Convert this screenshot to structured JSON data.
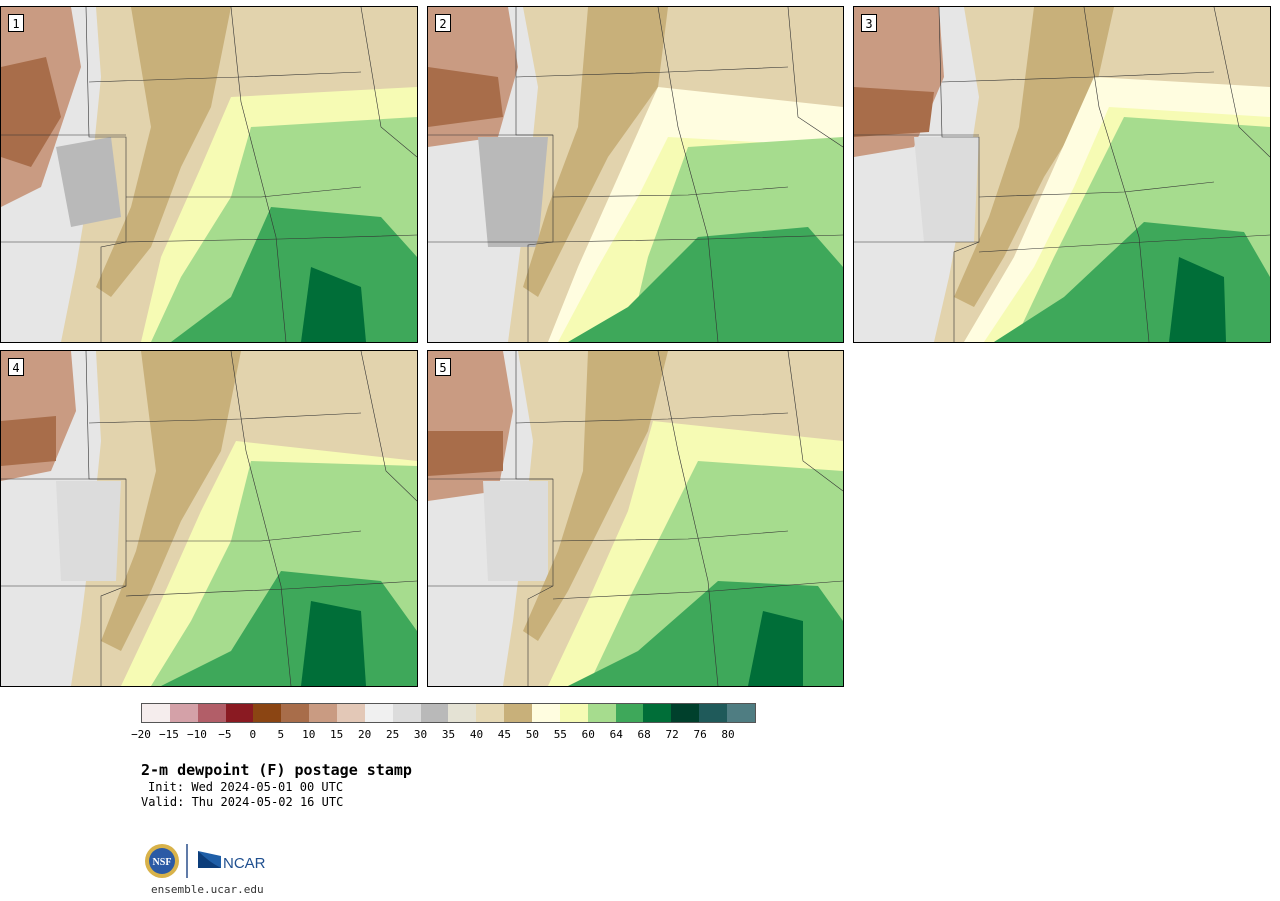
{
  "panels": [
    {
      "label": "1"
    },
    {
      "label": "2"
    },
    {
      "label": "3"
    },
    {
      "label": "4"
    },
    {
      "label": "5"
    }
  ],
  "colorbar": {
    "colors": [
      "#f5eded",
      "#d4a1a8",
      "#b25e68",
      "#8a1a22",
      "#8b4513",
      "#a86d4a",
      "#c99b82",
      "#e3c8b7",
      "#f0f0f0",
      "#dcdcdc",
      "#b9b9b9",
      "#e4e2d4",
      "#e6d9b5",
      "#c8b07a",
      "#fffde0",
      "#f6fbb4",
      "#a6dc8e",
      "#3ea85a",
      "#006e38",
      "#00402c",
      "#1f5a5a",
      "#4f7d82"
    ],
    "ticks": [
      "−20",
      "−15",
      "−10",
      "−5",
      "0",
      "5",
      "10",
      "15",
      "20",
      "25",
      "30",
      "35",
      "40",
      "45",
      "50",
      "55",
      "60",
      "64",
      "68",
      "72",
      "76",
      "80"
    ]
  },
  "title": "2-m dewpoint (F) postage stamp",
  "init_line": "Init: Wed 2024-05-01 00 UTC",
  "valid_line": "Valid: Thu 2024-05-02 16 UTC",
  "logo": {
    "nsf_text": "NSF",
    "ncar_text": "NCAR"
  },
  "url": "ensemble.ucar.edu"
}
